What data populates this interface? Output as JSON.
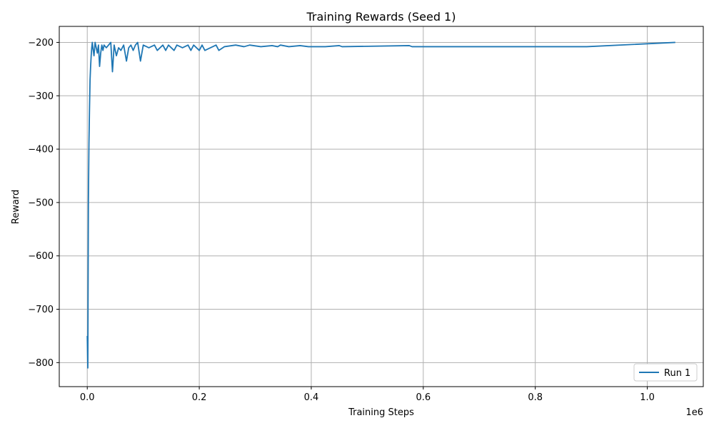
{
  "chart_data": {
    "type": "line",
    "title": "Training Rewards (Seed 1)",
    "xlabel": "Training Steps",
    "ylabel": "Reward",
    "x_offset_label": "1e6",
    "xlim": [
      -50000,
      1100000
    ],
    "ylim": [
      -845,
      -170
    ],
    "x_ticks": [
      0,
      200000,
      400000,
      600000,
      800000,
      1000000
    ],
    "x_tick_labels": [
      "0.0",
      "0.2",
      "0.4",
      "0.6",
      "0.8",
      "1.0"
    ],
    "y_ticks": [
      -800,
      -700,
      -600,
      -500,
      -400,
      -300,
      -200
    ],
    "y_tick_labels": [
      "−800",
      "−700",
      "−600",
      "−500",
      "−400",
      "−300",
      "−200"
    ],
    "grid": true,
    "legend_position": "bottom-right",
    "series": [
      {
        "name": "Run 1",
        "color": "#1f77b4",
        "x": [
          0,
          1000,
          2000,
          3000,
          4000,
          5000,
          6000,
          7000,
          8000,
          9000,
          10000,
          12000,
          14000,
          16000,
          18000,
          20000,
          22000,
          24000,
          26000,
          28000,
          30000,
          34000,
          38000,
          42000,
          45000,
          48000,
          52000,
          56000,
          60000,
          65000,
          70000,
          74000,
          78000,
          82000,
          86000,
          90000,
          95000,
          100000,
          110000,
          120000,
          125000,
          130000,
          135000,
          140000,
          145000,
          150000,
          155000,
          160000,
          170000,
          180000,
          185000,
          190000,
          195000,
          200000,
          205000,
          210000,
          220000,
          230000,
          235000,
          245000,
          265000,
          280000,
          290000,
          310000,
          330000,
          340000,
          345000,
          360000,
          380000,
          395000,
          425000,
          450000,
          455000,
          575000,
          580000,
          620000,
          677000,
          807000,
          822000,
          860000,
          892000,
          1050000
        ],
        "values": [
          -750,
          -810,
          -500,
          -390,
          -325,
          -270,
          -245,
          -225,
          -210,
          -200,
          -210,
          -225,
          -200,
          -210,
          -220,
          -205,
          -245,
          -220,
          -205,
          -215,
          -205,
          -210,
          -205,
          -200,
          -255,
          -205,
          -225,
          -210,
          -215,
          -205,
          -235,
          -210,
          -205,
          -215,
          -205,
          -200,
          -235,
          -205,
          -210,
          -205,
          -215,
          -210,
          -205,
          -215,
          -205,
          -210,
          -215,
          -205,
          -210,
          -205,
          -215,
          -205,
          -210,
          -215,
          -205,
          -215,
          -210,
          -205,
          -215,
          -208,
          -205,
          -208,
          -205,
          -208,
          -206,
          -208,
          -205,
          -208,
          -206,
          -208,
          -208,
          -206,
          -208,
          -206,
          -208,
          -208,
          -208,
          -208,
          -208,
          -208,
          -208,
          -200
        ]
      }
    ]
  }
}
